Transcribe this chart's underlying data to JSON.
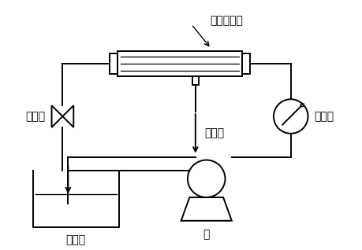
{
  "bg_color": "#ffffff",
  "line_color": "#000000",
  "labels": {
    "membrane": "复合纳滤膜",
    "pressure_gauge": "压力表",
    "valve": "调压阀",
    "pump": "泵",
    "tank": "储液槽",
    "permeate": "渗透液"
  },
  "font_size": 10,
  "lw": 1.4
}
